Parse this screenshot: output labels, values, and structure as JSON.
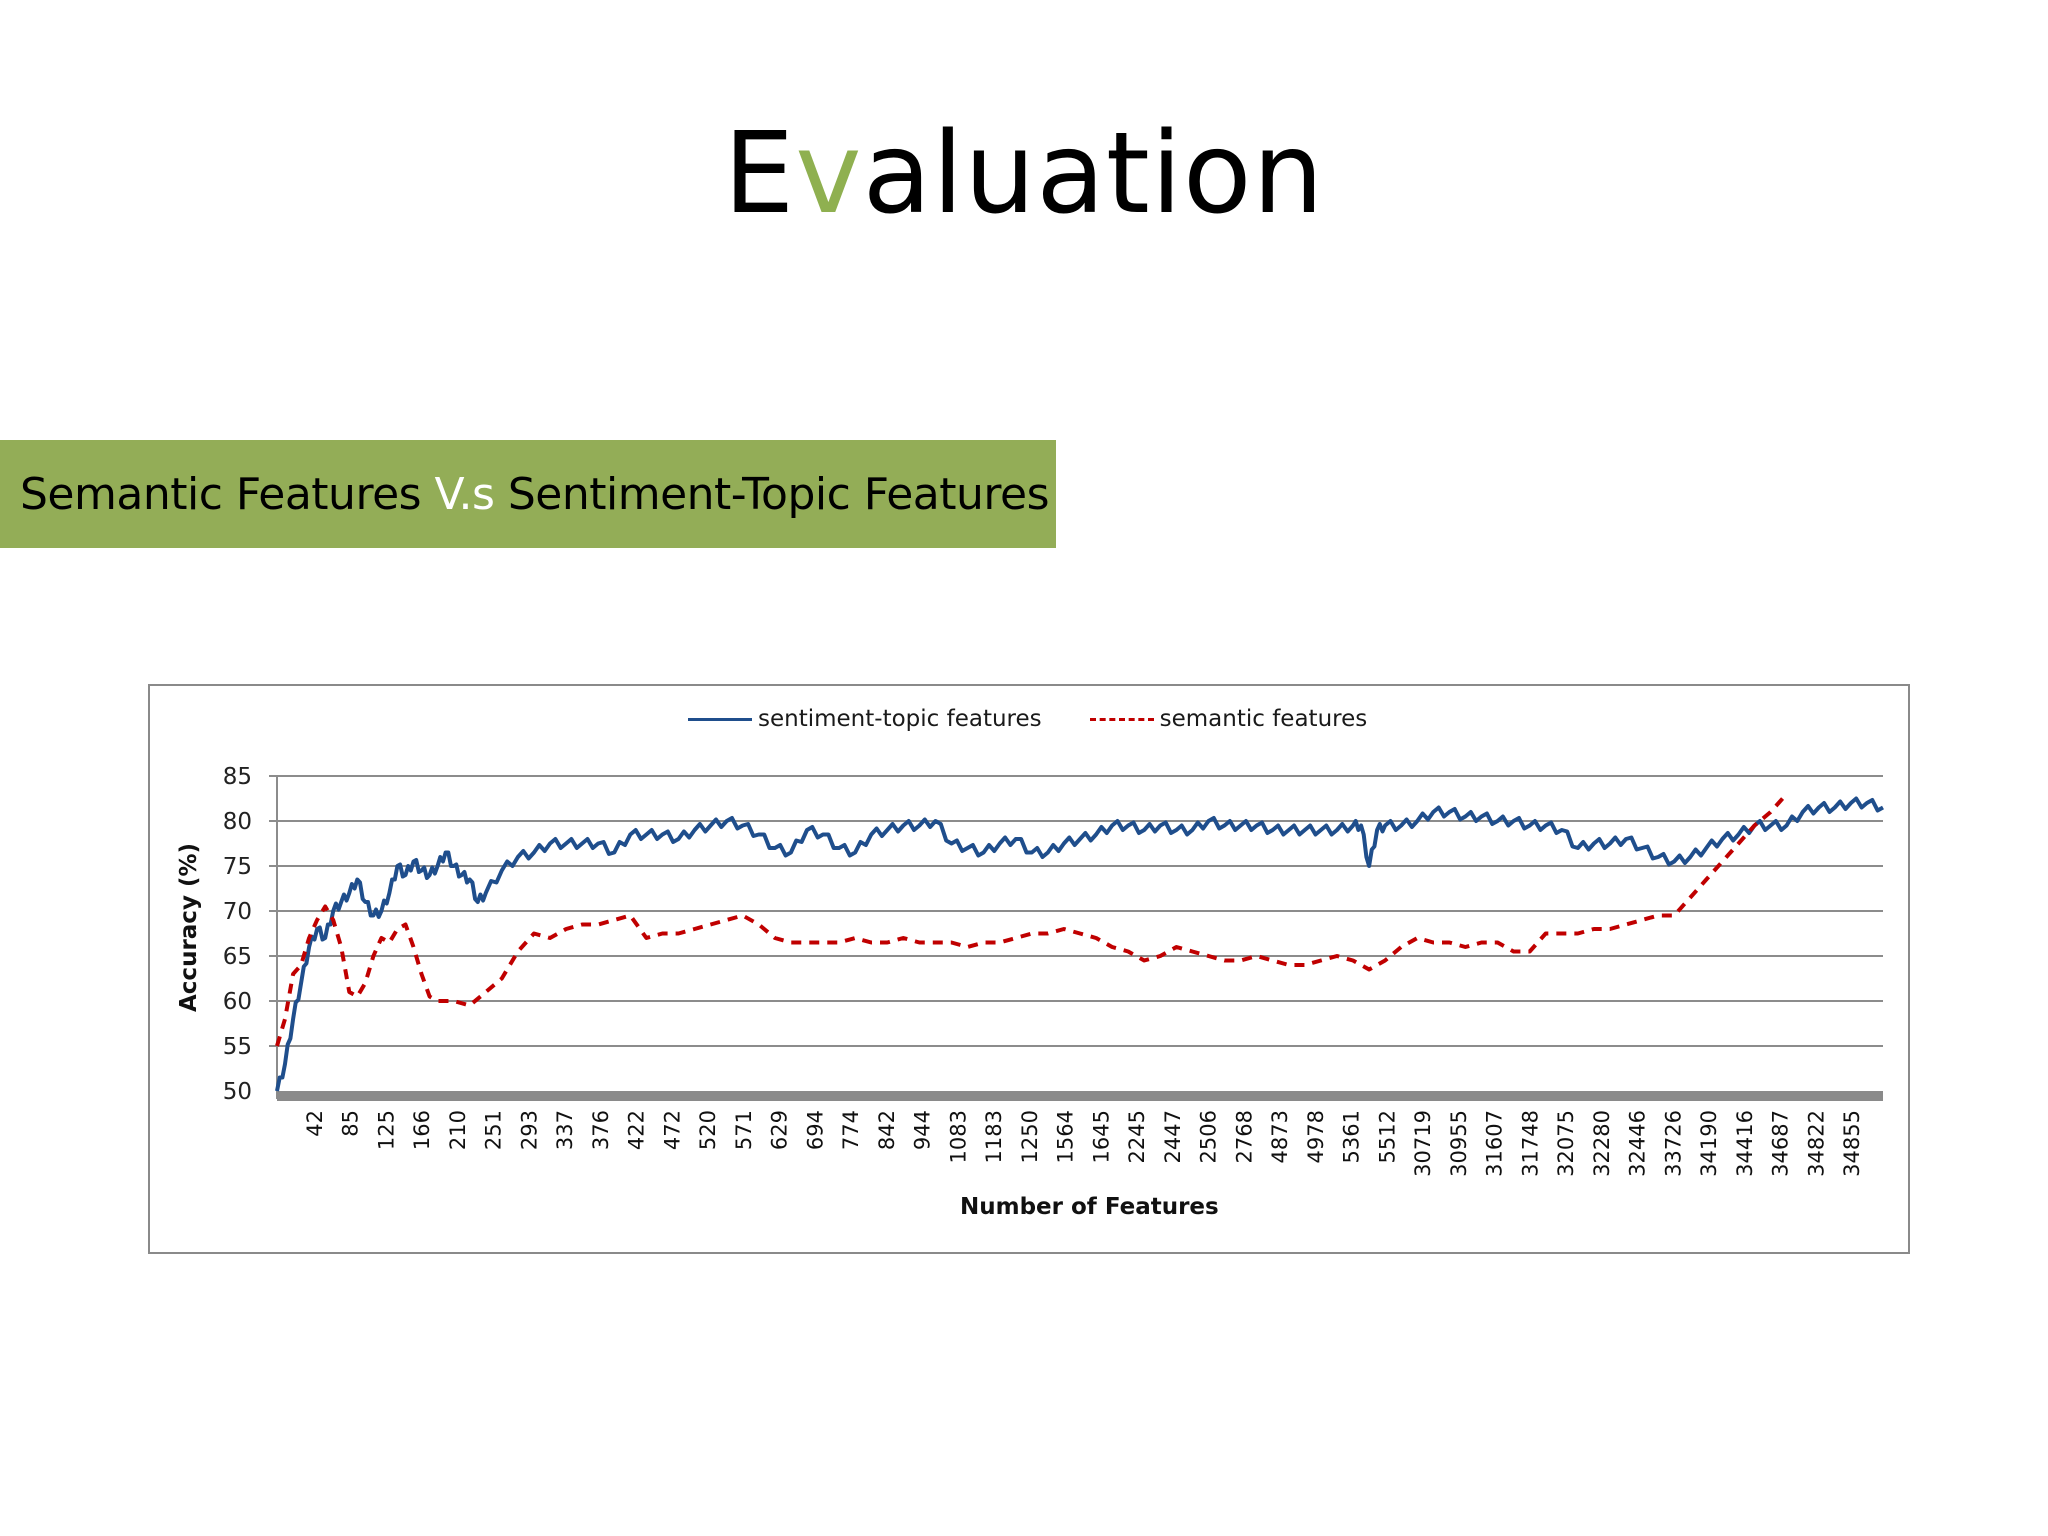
{
  "slide": {
    "title_prefix": "E",
    "title_accent": "v",
    "title_suffix": "aluation",
    "banner": {
      "left": "Semantic Features ",
      "vs": "V.s",
      "right": " Sentiment-Topic Features"
    }
  },
  "colors": {
    "title_accent": "#8fb050",
    "banner_bg": "#93ad57",
    "series_sentiment_topic": "#1f4e8c",
    "series_semantic": "#c00000",
    "gridline": "#8c8c8c"
  },
  "chart_data": {
    "type": "line",
    "title": "",
    "xlabel": "Number of Features",
    "ylabel": "Accuracy (%)",
    "ylim": [
      50,
      85
    ],
    "yticks": [
      50,
      55,
      60,
      65,
      70,
      75,
      80,
      85
    ],
    "grid": true,
    "legend_position": "top",
    "categories": [
      "42",
      "85",
      "125",
      "166",
      "210",
      "251",
      "293",
      "337",
      "376",
      "422",
      "472",
      "520",
      "571",
      "629",
      "694",
      "774",
      "842",
      "944",
      "1083",
      "1183",
      "1250",
      "1564",
      "1645",
      "2245",
      "2447",
      "2506",
      "2768",
      "4873",
      "4978",
      "5361",
      "5512",
      "30719",
      "30955",
      "31607",
      "31748",
      "32075",
      "32280",
      "32446",
      "33726",
      "34190",
      "34416",
      "34687",
      "34822",
      "34855"
    ],
    "series": [
      {
        "name": "sentiment-topic features",
        "style": "solid",
        "color": "#1f4e8c",
        "points": [
          [
            0,
            50
          ],
          [
            0.005,
            53
          ],
          [
            0.01,
            58
          ],
          [
            0.015,
            62
          ],
          [
            0.02,
            66
          ],
          [
            0.025,
            68
          ],
          [
            0.03,
            67
          ],
          [
            0.035,
            70
          ],
          [
            0.04,
            71
          ],
          [
            0.045,
            72
          ],
          [
            0.05,
            73.5
          ],
          [
            0.055,
            71
          ],
          [
            0.06,
            69.5
          ],
          [
            0.065,
            70
          ],
          [
            0.07,
            72
          ],
          [
            0.075,
            75
          ],
          [
            0.08,
            74
          ],
          [
            0.085,
            75.5
          ],
          [
            0.09,
            74.5
          ],
          [
            0.095,
            74
          ],
          [
            0.1,
            75
          ],
          [
            0.105,
            76.5
          ],
          [
            0.11,
            75
          ],
          [
            0.115,
            74
          ],
          [
            0.12,
            73.5
          ],
          [
            0.125,
            71
          ],
          [
            0.13,
            72
          ],
          [
            0.14,
            74.5
          ],
          [
            0.15,
            76
          ],
          [
            0.16,
            76.5
          ],
          [
            0.17,
            77.5
          ],
          [
            0.18,
            77.5
          ],
          [
            0.19,
            77.5
          ],
          [
            0.2,
            77.5
          ],
          [
            0.21,
            76.5
          ],
          [
            0.22,
            78.5
          ],
          [
            0.23,
            78.5
          ],
          [
            0.24,
            78.5
          ],
          [
            0.25,
            78
          ],
          [
            0.26,
            79
          ],
          [
            0.27,
            79.5
          ],
          [
            0.28,
            80
          ],
          [
            0.29,
            79.5
          ],
          [
            0.3,
            78.5
          ],
          [
            0.31,
            77
          ],
          [
            0.32,
            76.5
          ],
          [
            0.33,
            79
          ],
          [
            0.34,
            78.5
          ],
          [
            0.35,
            77
          ],
          [
            0.36,
            76.5
          ],
          [
            0.37,
            78.5
          ],
          [
            0.38,
            79
          ],
          [
            0.39,
            79.5
          ],
          [
            0.4,
            79.5
          ],
          [
            0.41,
            80
          ],
          [
            0.42,
            77.5
          ],
          [
            0.43,
            77
          ],
          [
            0.44,
            76.5
          ],
          [
            0.45,
            77.5
          ],
          [
            0.46,
            78
          ],
          [
            0.47,
            76.5
          ],
          [
            0.48,
            76.5
          ],
          [
            0.49,
            77.5
          ],
          [
            0.5,
            78
          ],
          [
            0.51,
            78.5
          ],
          [
            0.52,
            79.5
          ],
          [
            0.53,
            79.5
          ],
          [
            0.54,
            79
          ],
          [
            0.55,
            79.5
          ],
          [
            0.56,
            79
          ],
          [
            0.57,
            79
          ],
          [
            0.58,
            80
          ],
          [
            0.59,
            79.5
          ],
          [
            0.6,
            79.5
          ],
          [
            0.61,
            79.5
          ],
          [
            0.62,
            79
          ],
          [
            0.63,
            79
          ],
          [
            0.64,
            79
          ],
          [
            0.65,
            79
          ],
          [
            0.66,
            79
          ],
          [
            0.67,
            79.5
          ],
          [
            0.675,
            79.5
          ],
          [
            0.68,
            75
          ],
          [
            0.685,
            79
          ],
          [
            0.69,
            79.5
          ],
          [
            0.7,
            79.5
          ],
          [
            0.71,
            80
          ],
          [
            0.72,
            81
          ],
          [
            0.73,
            81
          ],
          [
            0.74,
            80.5
          ],
          [
            0.75,
            80.5
          ],
          [
            0.76,
            80
          ],
          [
            0.77,
            80
          ],
          [
            0.78,
            79.5
          ],
          [
            0.79,
            79.5
          ],
          [
            0.8,
            79
          ],
          [
            0.81,
            77
          ],
          [
            0.82,
            77.5
          ],
          [
            0.83,
            77.5
          ],
          [
            0.84,
            78
          ],
          [
            0.85,
            77
          ],
          [
            0.86,
            76
          ],
          [
            0.87,
            75.5
          ],
          [
            0.88,
            76
          ],
          [
            0.89,
            77
          ],
          [
            0.9,
            78
          ],
          [
            0.91,
            78.5
          ],
          [
            0.92,
            79.5
          ],
          [
            0.93,
            79.5
          ],
          [
            0.94,
            79.5
          ],
          [
            0.95,
            81
          ],
          [
            0.96,
            81.5
          ],
          [
            0.97,
            81.5
          ],
          [
            0.98,
            82
          ],
          [
            0.99,
            82
          ],
          [
            1.0,
            81.5
          ]
        ]
      },
      {
        "name": "semantic features",
        "style": "dashed",
        "color": "#c00000",
        "points": [
          [
            0,
            55
          ],
          [
            0.005,
            58
          ],
          [
            0.01,
            63
          ],
          [
            0.015,
            64
          ],
          [
            0.02,
            67
          ],
          [
            0.025,
            69
          ],
          [
            0.03,
            70.5
          ],
          [
            0.035,
            69
          ],
          [
            0.04,
            66
          ],
          [
            0.045,
            61
          ],
          [
            0.05,
            60.5
          ],
          [
            0.055,
            62
          ],
          [
            0.06,
            65
          ],
          [
            0.065,
            67
          ],
          [
            0.07,
            66.5
          ],
          [
            0.075,
            68
          ],
          [
            0.08,
            68.5
          ],
          [
            0.085,
            66
          ],
          [
            0.09,
            63
          ],
          [
            0.095,
            60.5
          ],
          [
            0.1,
            60
          ],
          [
            0.11,
            60
          ],
          [
            0.12,
            59.5
          ],
          [
            0.13,
            61
          ],
          [
            0.14,
            62.5
          ],
          [
            0.15,
            65.5
          ],
          [
            0.16,
            67.5
          ],
          [
            0.17,
            67
          ],
          [
            0.18,
            68
          ],
          [
            0.19,
            68.5
          ],
          [
            0.2,
            68.5
          ],
          [
            0.21,
            69
          ],
          [
            0.22,
            69.5
          ],
          [
            0.23,
            67
          ],
          [
            0.24,
            67.5
          ],
          [
            0.25,
            67.5
          ],
          [
            0.26,
            68
          ],
          [
            0.27,
            68.5
          ],
          [
            0.28,
            69
          ],
          [
            0.29,
            69.5
          ],
          [
            0.3,
            68.5
          ],
          [
            0.31,
            67
          ],
          [
            0.32,
            66.5
          ],
          [
            0.33,
            66.5
          ],
          [
            0.34,
            66.5
          ],
          [
            0.35,
            66.5
          ],
          [
            0.36,
            67
          ],
          [
            0.37,
            66.5
          ],
          [
            0.38,
            66.5
          ],
          [
            0.39,
            67
          ],
          [
            0.4,
            66.5
          ],
          [
            0.41,
            66.5
          ],
          [
            0.42,
            66.5
          ],
          [
            0.43,
            66
          ],
          [
            0.44,
            66.5
          ],
          [
            0.45,
            66.5
          ],
          [
            0.46,
            67
          ],
          [
            0.47,
            67.5
          ],
          [
            0.48,
            67.5
          ],
          [
            0.49,
            68
          ],
          [
            0.5,
            67.5
          ],
          [
            0.51,
            67
          ],
          [
            0.52,
            66
          ],
          [
            0.53,
            65.5
          ],
          [
            0.54,
            64.5
          ],
          [
            0.55,
            65
          ],
          [
            0.56,
            66
          ],
          [
            0.57,
            65.5
          ],
          [
            0.58,
            65
          ],
          [
            0.59,
            64.5
          ],
          [
            0.6,
            64.5
          ],
          [
            0.61,
            65
          ],
          [
            0.62,
            64.5
          ],
          [
            0.63,
            64
          ],
          [
            0.64,
            64
          ],
          [
            0.65,
            64.5
          ],
          [
            0.66,
            65
          ],
          [
            0.67,
            64.5
          ],
          [
            0.68,
            63.5
          ],
          [
            0.69,
            64.5
          ],
          [
            0.7,
            66
          ],
          [
            0.71,
            67
          ],
          [
            0.72,
            66.5
          ],
          [
            0.73,
            66.5
          ],
          [
            0.74,
            66
          ],
          [
            0.75,
            66.5
          ],
          [
            0.76,
            66.5
          ],
          [
            0.77,
            65.5
          ],
          [
            0.78,
            65.5
          ],
          [
            0.79,
            67.5
          ],
          [
            0.8,
            67.5
          ],
          [
            0.81,
            67.5
          ],
          [
            0.82,
            68
          ],
          [
            0.83,
            68
          ],
          [
            0.84,
            68.5
          ],
          [
            0.85,
            69
          ],
          [
            0.86,
            69.5
          ],
          [
            0.87,
            69.5
          ],
          [
            0.88,
            71.5
          ],
          [
            0.89,
            73.5
          ],
          [
            0.9,
            75.5
          ],
          [
            0.91,
            77.5
          ],
          [
            0.92,
            79.5
          ],
          [
            0.93,
            81
          ],
          [
            0.935,
            82
          ],
          [
            0.94,
            83
          ]
        ]
      }
    ]
  }
}
